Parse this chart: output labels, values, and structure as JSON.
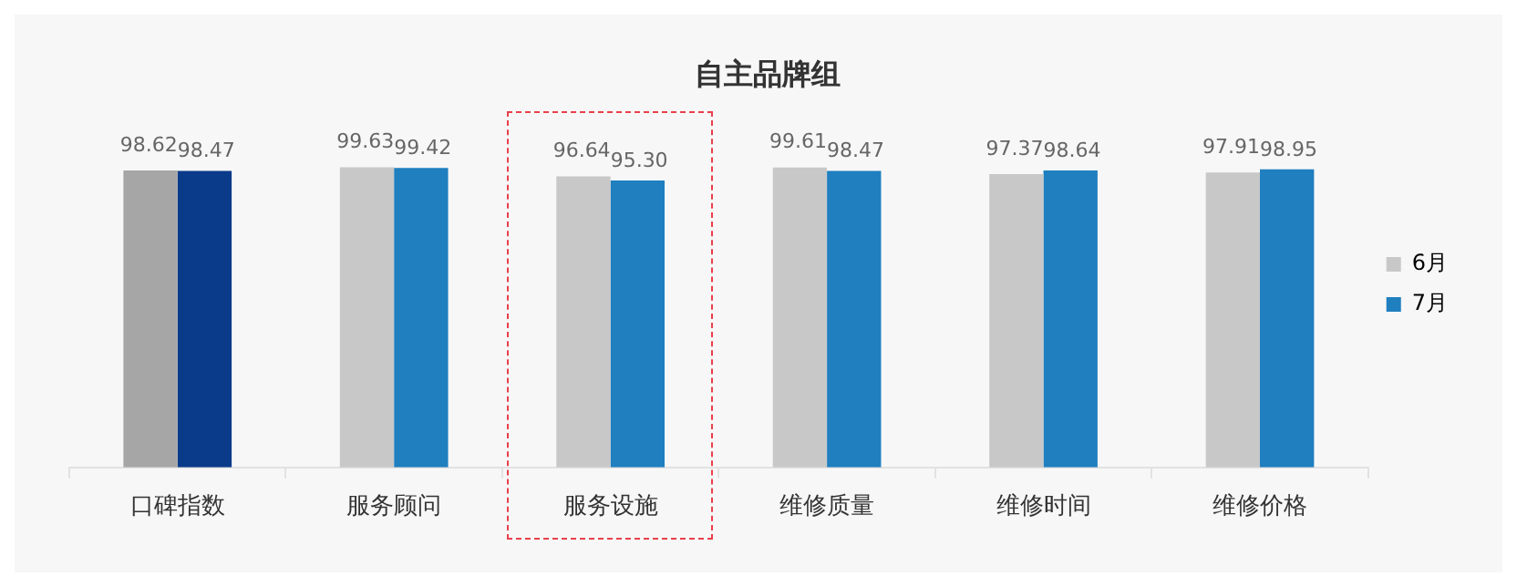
{
  "chart_data": {
    "type": "bar",
    "title": "自主品牌组",
    "categories": [
      "口碑指数",
      "服务顾问",
      "服务设施",
      "维修质量",
      "维修时间",
      "维修价格"
    ],
    "series": [
      {
        "name": "6月",
        "color": "#c8c8c8",
        "colors": [
          "#a6a6a6",
          "#c8c8c8",
          "#c8c8c8",
          "#c8c8c8",
          "#c8c8c8",
          "#c8c8c8"
        ],
        "values": [
          98.62,
          99.63,
          96.64,
          99.61,
          97.37,
          97.91
        ],
        "value_labels": [
          "98.62",
          "99.63",
          "96.64",
          "99.61",
          "97.37",
          "97.91"
        ]
      },
      {
        "name": "7月",
        "color": "#1f7fbf",
        "colors": [
          "#0a3a8a",
          "#1f7fbf",
          "#1f7fbf",
          "#1f7fbf",
          "#1f7fbf",
          "#1f7fbf"
        ],
        "values": [
          98.47,
          99.42,
          95.3,
          98.47,
          98.64,
          98.95
        ],
        "value_labels": [
          "98.47",
          "99.42",
          "95.30",
          "98.47",
          "98.64",
          "98.95"
        ]
      }
    ],
    "legend": "right",
    "grid": false
  }
}
